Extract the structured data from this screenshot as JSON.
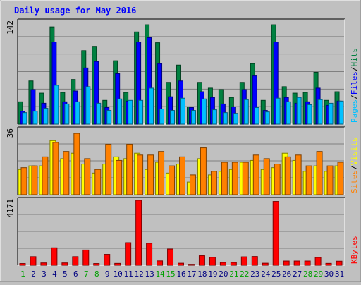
{
  "title": "Daily usage for May 2016",
  "colors": {
    "background": "#c0c0c0",
    "plot_bg": "#c0c0c0",
    "title": "#0000ff",
    "hits": "#008040",
    "files": "#0000ff",
    "pages": "#00c0ff",
    "visits": "#ffff00",
    "sites": "#ff8000",
    "kbytes": "#ff0000",
    "weekend_day": "#00a000",
    "weekday": "#000080"
  },
  "chart_data": [
    {
      "type": "bar",
      "title": "",
      "ymax_label": "142",
      "legend": [
        "Pages",
        "Files",
        "Hits"
      ],
      "categories": [
        "1",
        "2",
        "3",
        "4",
        "5",
        "6",
        "7",
        "8",
        "9",
        "10",
        "11",
        "12",
        "13",
        "14",
        "15",
        "16",
        "17",
        "18",
        "19",
        "20",
        "21",
        "22",
        "23",
        "24",
        "25",
        "26",
        "27",
        "28",
        "29",
        "30",
        "31"
      ],
      "weekend_days": [
        1,
        7,
        8,
        14,
        15,
        21,
        22,
        28,
        29
      ],
      "ylim": [
        0,
        142
      ],
      "series": [
        {
          "name": "Hits",
          "values": [
            31,
            60,
            43,
            135,
            44,
            62,
            102,
            108,
            33,
            88,
            44,
            128,
            138,
            113,
            58,
            82,
            24,
            58,
            50,
            48,
            37,
            58,
            84,
            33,
            138,
            52,
            43,
            44,
            72,
            33,
            45
          ]
        },
        {
          "name": "Files",
          "values": [
            18,
            48,
            29,
            114,
            31,
            46,
            78,
            87,
            23,
            70,
            32,
            114,
            120,
            84,
            38,
            60,
            23,
            45,
            37,
            28,
            24,
            48,
            67,
            19,
            114,
            37,
            29,
            31,
            50,
            26,
            32
          ]
        },
        {
          "name": "Pages",
          "values": [
            16,
            18,
            22,
            54,
            28,
            31,
            52,
            29,
            19,
            35,
            33,
            33,
            50,
            21,
            19,
            36,
            19,
            35,
            20,
            16,
            15,
            34,
            23,
            17,
            36,
            31,
            37,
            27,
            34,
            29,
            32
          ]
        }
      ]
    },
    {
      "type": "bar",
      "title": "",
      "ymax_label": "36",
      "legend": [
        "Sites",
        "Visits"
      ],
      "categories": [
        "1",
        "2",
        "3",
        "4",
        "5",
        "6",
        "7",
        "8",
        "9",
        "10",
        "11",
        "12",
        "13",
        "14",
        "15",
        "16",
        "17",
        "18",
        "19",
        "20",
        "21",
        "22",
        "23",
        "24",
        "25",
        "26",
        "27",
        "28",
        "29",
        "30",
        "31"
      ],
      "ylim": [
        0,
        36
      ],
      "series": [
        {
          "name": "Visits",
          "values": [
            14,
            16,
            16,
            30,
            20,
            23,
            17,
            12,
            17,
            21,
            20,
            23,
            14,
            18,
            12,
            17,
            7,
            20,
            11,
            13,
            14,
            18,
            19,
            14,
            15,
            23,
            19,
            13,
            16,
            13,
            16
          ]
        },
        {
          "name": "Sites",
          "values": [
            15,
            16,
            21,
            29,
            24,
            34,
            20,
            14,
            28,
            19,
            28,
            22,
            22,
            24,
            16,
            21,
            11,
            26,
            13,
            18,
            18,
            18,
            22,
            20,
            17,
            21,
            22,
            16,
            24,
            16,
            18
          ]
        }
      ]
    },
    {
      "type": "bar",
      "title": "",
      "ymax_label": "4171",
      "legend": [
        "KBytes"
      ],
      "categories": [
        "1",
        "2",
        "3",
        "4",
        "5",
        "6",
        "7",
        "8",
        "9",
        "10",
        "11",
        "12",
        "13",
        "14",
        "15",
        "16",
        "17",
        "18",
        "19",
        "20",
        "21",
        "22",
        "23",
        "24",
        "25",
        "26",
        "27",
        "28",
        "29",
        "30",
        "31"
      ],
      "ylim": [
        0,
        4171
      ],
      "series": [
        {
          "name": "KBytes",
          "values": [
            110,
            550,
            150,
            1120,
            150,
            550,
            980,
            110,
            700,
            120,
            1450,
            4171,
            1410,
            280,
            1040,
            130,
            60,
            610,
            510,
            180,
            180,
            540,
            560,
            130,
            4100,
            270,
            270,
            270,
            500,
            120,
            260
          ]
        }
      ]
    }
  ]
}
